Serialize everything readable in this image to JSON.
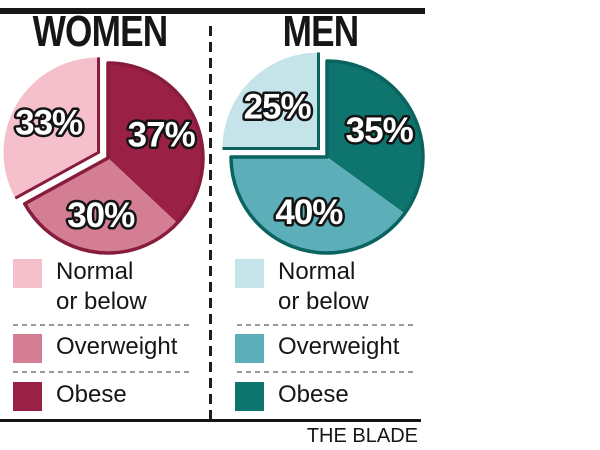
{
  "chart_data": [
    {
      "type": "pie",
      "title": "WOMEN",
      "unit": "%",
      "slices": [
        {
          "category": "Normal or below",
          "value": 33,
          "label": "33%",
          "color": "#f5c0cb",
          "exploded": true
        },
        {
          "category": "Overweight",
          "value": 30,
          "label": "30%",
          "color": "#d47e93",
          "exploded": false
        },
        {
          "category": "Obese",
          "value": 37,
          "label": "37%",
          "color": "#9a2045",
          "exploded": false
        }
      ],
      "outline_color": "#871c3c",
      "arrangement": "clockwise from 12 o'clock: Obese 37%, Overweight 30%, Normal or below 33% (exploded upper-left)",
      "legend": [
        {
          "line1": "Normal",
          "line2": "or below"
        },
        {
          "line1": "Overweight",
          "line2": ""
        },
        {
          "line1": "Obese",
          "line2": ""
        }
      ]
    },
    {
      "type": "pie",
      "title": "MEN",
      "unit": "%",
      "slices": [
        {
          "category": "Normal or below",
          "value": 25,
          "label": "25%",
          "color": "#c4e4e9",
          "exploded": true
        },
        {
          "category": "Overweight",
          "value": 40,
          "label": "40%",
          "color": "#5cafb9",
          "exploded": false
        },
        {
          "category": "Obese",
          "value": 35,
          "label": "35%",
          "color": "#0d746e",
          "exploded": false
        }
      ],
      "outline_color": "#0a635e",
      "arrangement": "clockwise from 12 o'clock: Obese 35%, Overweight 40%, Normal or below 25% (exploded upper-left)",
      "legend": [
        {
          "line1": "Normal",
          "line2": "or below"
        },
        {
          "line1": "Overweight",
          "line2": ""
        },
        {
          "line1": "Obese",
          "line2": ""
        }
      ]
    }
  ],
  "footer": {
    "source": "THE BLADE"
  },
  "style_colors": {
    "rule_black": "#161616",
    "separator_gray": "#9a9a9a",
    "label_outline": "#141414",
    "label_fill": "#ffffff"
  }
}
